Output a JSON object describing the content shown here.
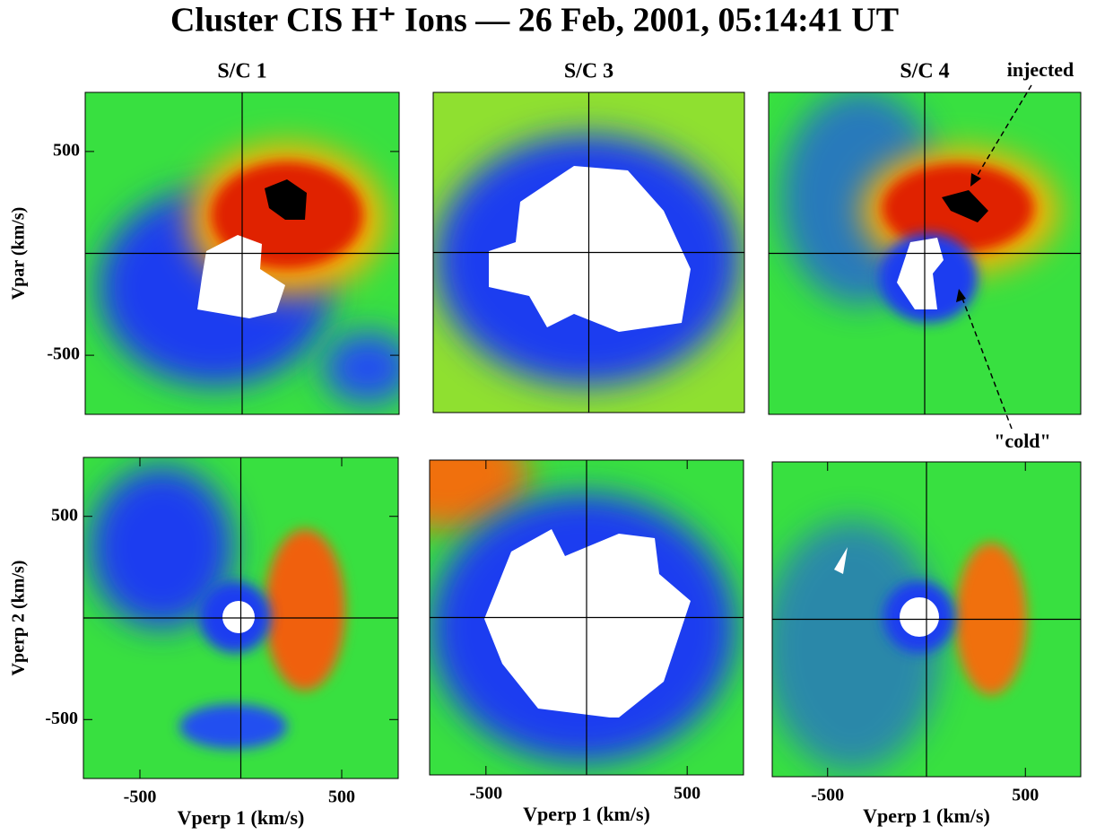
{
  "title": "Cluster CIS  H⁺ Ions  —  26 Feb, 2001, 05:14:41 UT",
  "panels": [
    {
      "title": "S/C 1",
      "ylabel": "Vpar (km/s)",
      "xlim": [
        -780,
        780
      ],
      "ylim": [
        -790,
        790
      ],
      "yticks": [
        -500,
        500
      ]
    },
    {
      "title": "S/C 3",
      "xlim": [
        -780,
        780
      ],
      "ylim": [
        -790,
        790
      ]
    },
    {
      "title": "S/C 4",
      "xlim": [
        -780,
        780
      ],
      "ylim": [
        -790,
        790
      ]
    },
    {
      "xlabel": "Vperp 1 (km/s)",
      "ylabel": "Vperp 2 (km/s)",
      "xlim": [
        -780,
        780
      ],
      "ylim": [
        -790,
        790
      ],
      "xticks": [
        -500,
        500
      ],
      "yticks": [
        -500,
        500
      ]
    },
    {
      "xlabel": "Vperp 1 (km/s)",
      "xlim": [
        -780,
        780
      ],
      "ylim": [
        -790,
        790
      ],
      "xticks": [
        -500,
        500
      ]
    },
    {
      "xlabel": "Vperp 1 (km/s)",
      "xlim": [
        -780,
        780
      ],
      "ylim": [
        -790,
        790
      ],
      "xticks": [
        -500,
        500
      ]
    }
  ],
  "annotations": [
    "injected",
    "\"cold\""
  ]
}
